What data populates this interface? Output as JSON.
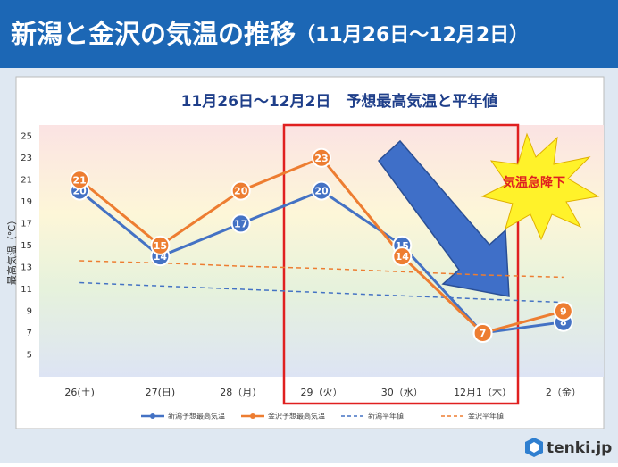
{
  "header": {
    "title": "新潟と金沢の気温の推移",
    "range": "（11月26日～12月2日）"
  },
  "chart_data": {
    "type": "line",
    "subtitle": "11月26日～12月2日　予想最高気温と平年値",
    "y_label": "最高気温（℃）",
    "annotation": "気温急降下",
    "categories": [
      "26(土)",
      "27(日)",
      "28（月）",
      "29（火）",
      "30（水）",
      "12月1（木）",
      "2（金）"
    ],
    "series": [
      {
        "name": "新潟予想最高気温",
        "color": "#4472c4",
        "values": [
          20,
          14,
          17,
          20,
          15,
          7,
          8
        ],
        "labels": true
      },
      {
        "name": "金沢予想最高気温",
        "color": "#ed7d31",
        "values": [
          21,
          15,
          20,
          23,
          14,
          7,
          9
        ],
        "labels": true
      },
      {
        "name": "新潟平年値",
        "color": "#4472c4",
        "dash": true,
        "values": [
          11.6,
          11.3,
          11.0,
          10.7,
          10.4,
          10.1,
          9.8
        ]
      },
      {
        "name": "金沢平年値",
        "color": "#ed7d31",
        "dash": true,
        "values": [
          13.6,
          13.4,
          13.1,
          12.9,
          12.6,
          12.3,
          12.1
        ]
      }
    ],
    "ylim": [
      3,
      26
    ],
    "yticks": [
      5,
      7,
      9,
      11,
      13,
      15,
      17,
      19,
      21,
      23,
      25
    ],
    "grid": false
  },
  "footer": {
    "logo": "tenki.jp"
  }
}
